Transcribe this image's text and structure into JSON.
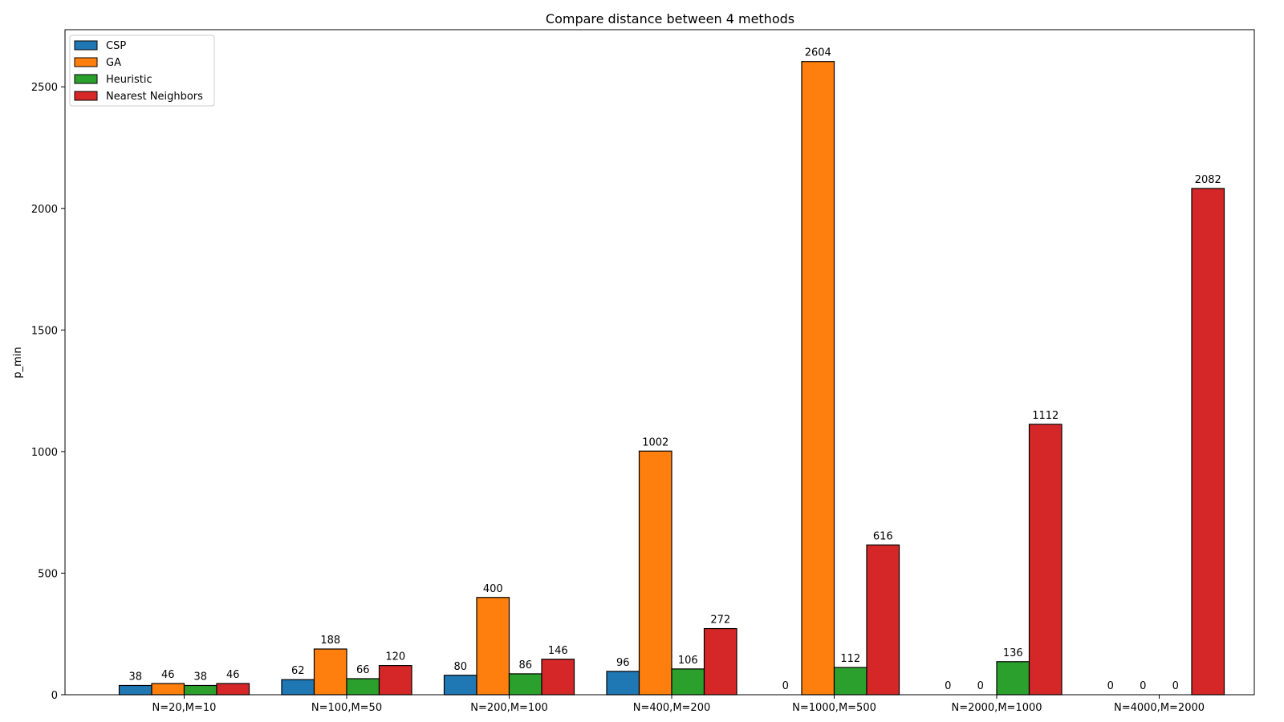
{
  "chart_data": {
    "type": "bar",
    "title": "Compare distance between 4 methods",
    "xlabel": "",
    "ylabel": "p_min",
    "categories": [
      "N=20,M=10",
      "N=100,M=50",
      "N=200,M=100",
      "N=400,M=200",
      "N=1000,M=500",
      "N=2000,M=1000",
      "N=4000,M=2000"
    ],
    "series": [
      {
        "name": "CSP",
        "color": "#1f77b4",
        "values": [
          38,
          62,
          80,
          96,
          0,
          0,
          0
        ]
      },
      {
        "name": "GA",
        "color": "#ff7f0e",
        "values": [
          46,
          188,
          400,
          1002,
          2604,
          0,
          0
        ]
      },
      {
        "name": "Heuristic",
        "color": "#2ca02c",
        "values": [
          38,
          66,
          86,
          106,
          112,
          136,
          0
        ]
      },
      {
        "name": "Nearest Neighbors",
        "color": "#d62728",
        "values": [
          46,
          120,
          146,
          272,
          616,
          1112,
          2082
        ]
      }
    ],
    "ylim": [
      0,
      2735
    ],
    "yticks": [
      0,
      500,
      1000,
      1500,
      2000,
      2500
    ],
    "grid": false,
    "legend": "top-left"
  }
}
